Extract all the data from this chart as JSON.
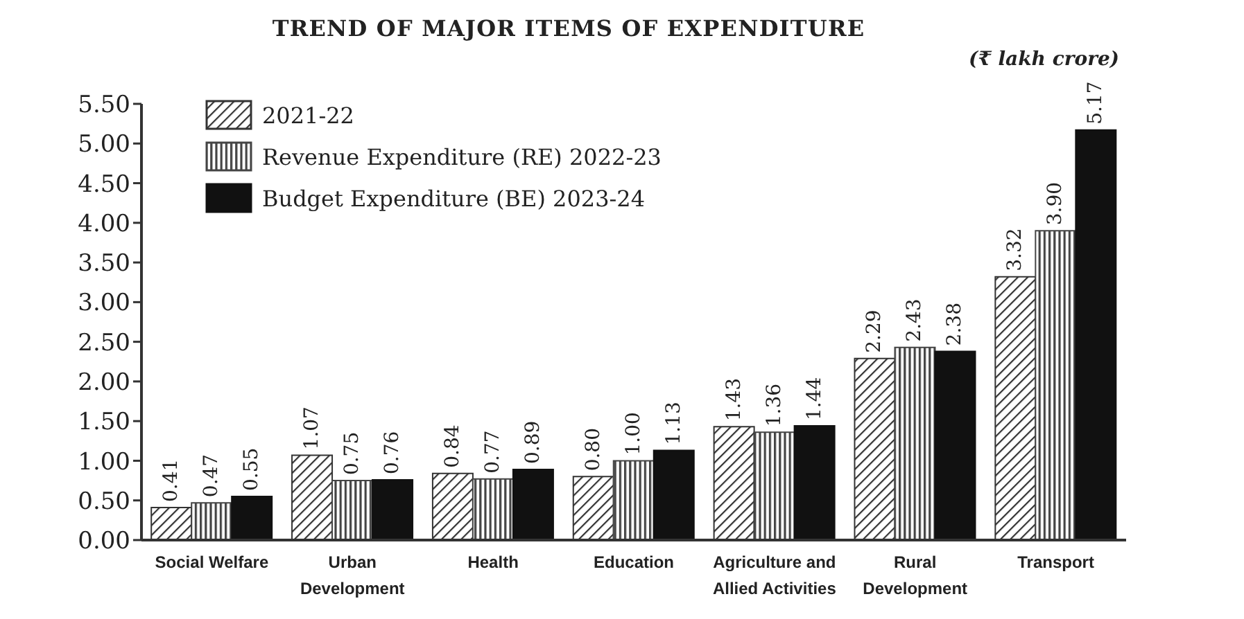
{
  "chart_data": {
    "type": "bar",
    "title": "TREND OF MAJOR ITEMS OF EXPENDITURE",
    "subtitle": "(₹ lakh crore)",
    "categories": [
      "Social Welfare",
      "Urban Development",
      "Health",
      "Education",
      "Agriculture and Allied Activities",
      "Rural Development",
      "Transport"
    ],
    "series": [
      {
        "name": "2021-22",
        "color": "#333333",
        "values": [
          0.41,
          1.07,
          0.84,
          0.8,
          1.43,
          2.29,
          3.32
        ],
        "value_labels": [
          "0.41",
          "1.07",
          "0.84",
          "0.80",
          "1.43",
          "2.29",
          "3.32"
        ]
      },
      {
        "name": "Revenue Expenditure (RE) 2022-23",
        "color": "#444444",
        "values": [
          0.47,
          0.75,
          0.77,
          1.0,
          1.36,
          2.43,
          3.9
        ],
        "value_labels": [
          "0.47",
          "0.75",
          "0.77",
          "1.00",
          "1.36",
          "2.43",
          "3.90"
        ]
      },
      {
        "name": "Budget Expenditure (BE) 2023-24",
        "color": "#111111",
        "values": [
          0.55,
          0.76,
          0.89,
          1.13,
          1.44,
          2.38,
          5.17
        ],
        "value_labels": [
          "0.55",
          "0.76",
          "0.89",
          "1.13",
          "1.44",
          "2.38",
          "5.17"
        ]
      }
    ],
    "ylim": [
      0,
      5.5
    ],
    "yticks": [
      {
        "value": 0,
        "label": "0.00"
      },
      {
        "value": 0.5,
        "label": "0.50"
      },
      {
        "value": 1,
        "label": "1.00"
      },
      {
        "value": 1.5,
        "label": "1.50"
      },
      {
        "value": 2,
        "label": "2.00"
      },
      {
        "value": 2.5,
        "label": "2.50"
      },
      {
        "value": 3,
        "label": "3.00"
      },
      {
        "value": 3.5,
        "label": "3.50"
      },
      {
        "value": 4,
        "label": "4.00"
      },
      {
        "value": 4.5,
        "label": "4.50"
      },
      {
        "value": 5,
        "label": "5.00"
      },
      {
        "value": 5.5,
        "label": "5.50"
      }
    ],
    "legend": "top left"
  }
}
